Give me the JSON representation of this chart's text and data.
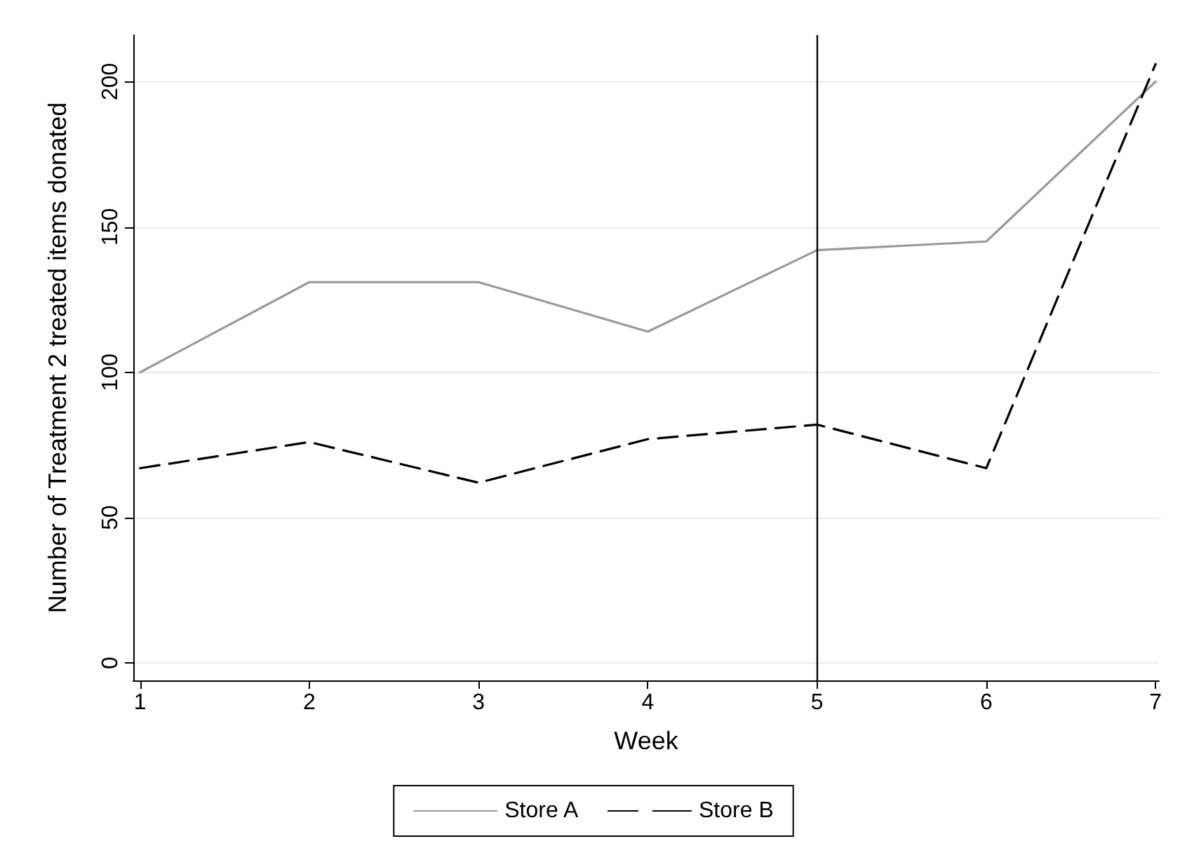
{
  "chart_data": {
    "type": "line",
    "xlabel": "Week",
    "ylabel": "Number of Treatment 2 treated items donated",
    "x": [
      1,
      2,
      3,
      4,
      5,
      6,
      7
    ],
    "series": [
      {
        "name": "Store A",
        "color": "#999999",
        "line_style": "solid",
        "values": [
          100,
          131,
          131,
          114,
          142,
          145,
          200
        ]
      },
      {
        "name": "Store B",
        "color": "#000000",
        "line_style": "dashed",
        "values": [
          67,
          76,
          62,
          77,
          82,
          67,
          206
        ]
      }
    ],
    "xlim": [
      0.96,
      7.02
    ],
    "xticks": [
      1,
      2,
      3,
      4,
      5,
      6,
      7
    ],
    "ylim": [
      -6,
      216
    ],
    "yticks": [
      0,
      50,
      100,
      150,
      200
    ],
    "ref_lines": [
      {
        "axis": "x",
        "value": 5,
        "color": "#000000"
      }
    ],
    "grid": "y",
    "legend": "bottom",
    "marker": "none"
  }
}
